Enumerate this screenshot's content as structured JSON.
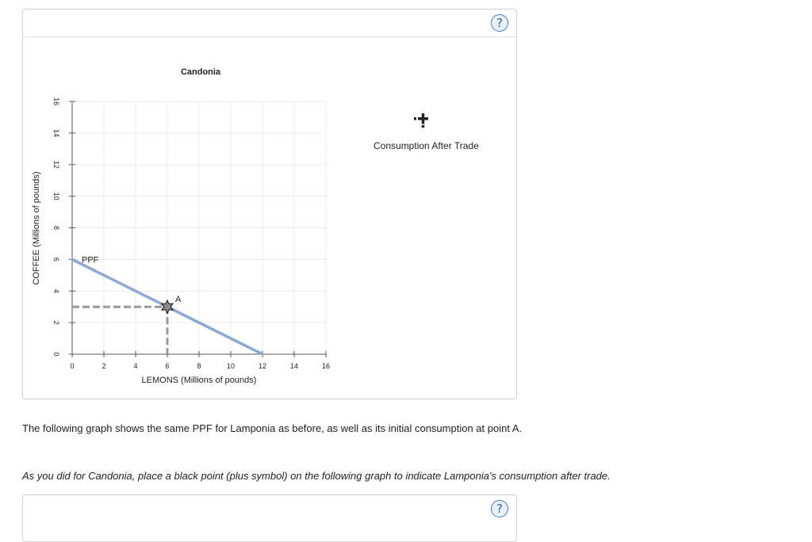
{
  "panel1": {
    "help_label": "?",
    "graph": {
      "title": "Candonia",
      "legend": {
        "label": "Consumption After Trade",
        "icon": "plus-icon",
        "color": "#222222"
      },
      "colors": {
        "ppf": "#8aaad2",
        "guide": "#999999",
        "grid": "#ececec",
        "axis": "#555555",
        "point_fill": "#8c8c8c"
      }
    }
  },
  "chart_data": {
    "type": "line",
    "title": "Candonia",
    "xlabel": "LEMONS (Millions of pounds)",
    "ylabel": "COFFEE (Millions of pounds)",
    "xlim": [
      0,
      16
    ],
    "ylim": [
      0,
      16
    ],
    "xticks": [
      "0",
      "2",
      "4",
      "6",
      "8",
      "10",
      "12",
      "14",
      "16"
    ],
    "yticks": [
      "0",
      "2",
      "4",
      "6",
      "8",
      "10",
      "12",
      "14",
      "16"
    ],
    "grid": true,
    "series": [
      {
        "name": "PPF",
        "x": [
          0,
          12
        ],
        "y": [
          6,
          0
        ]
      }
    ],
    "points": [
      {
        "label": "A",
        "x": 6,
        "y": 3,
        "shape": "star"
      }
    ]
  },
  "para1": "The following graph shows the same PPF for Lamponia as before, as well as its initial consumption at point A.",
  "para2": "As you did for Candonia, place a black point (plus symbol) on the following graph to indicate Lamponia's consumption after trade.",
  "panel2": {
    "help_label": "?"
  }
}
